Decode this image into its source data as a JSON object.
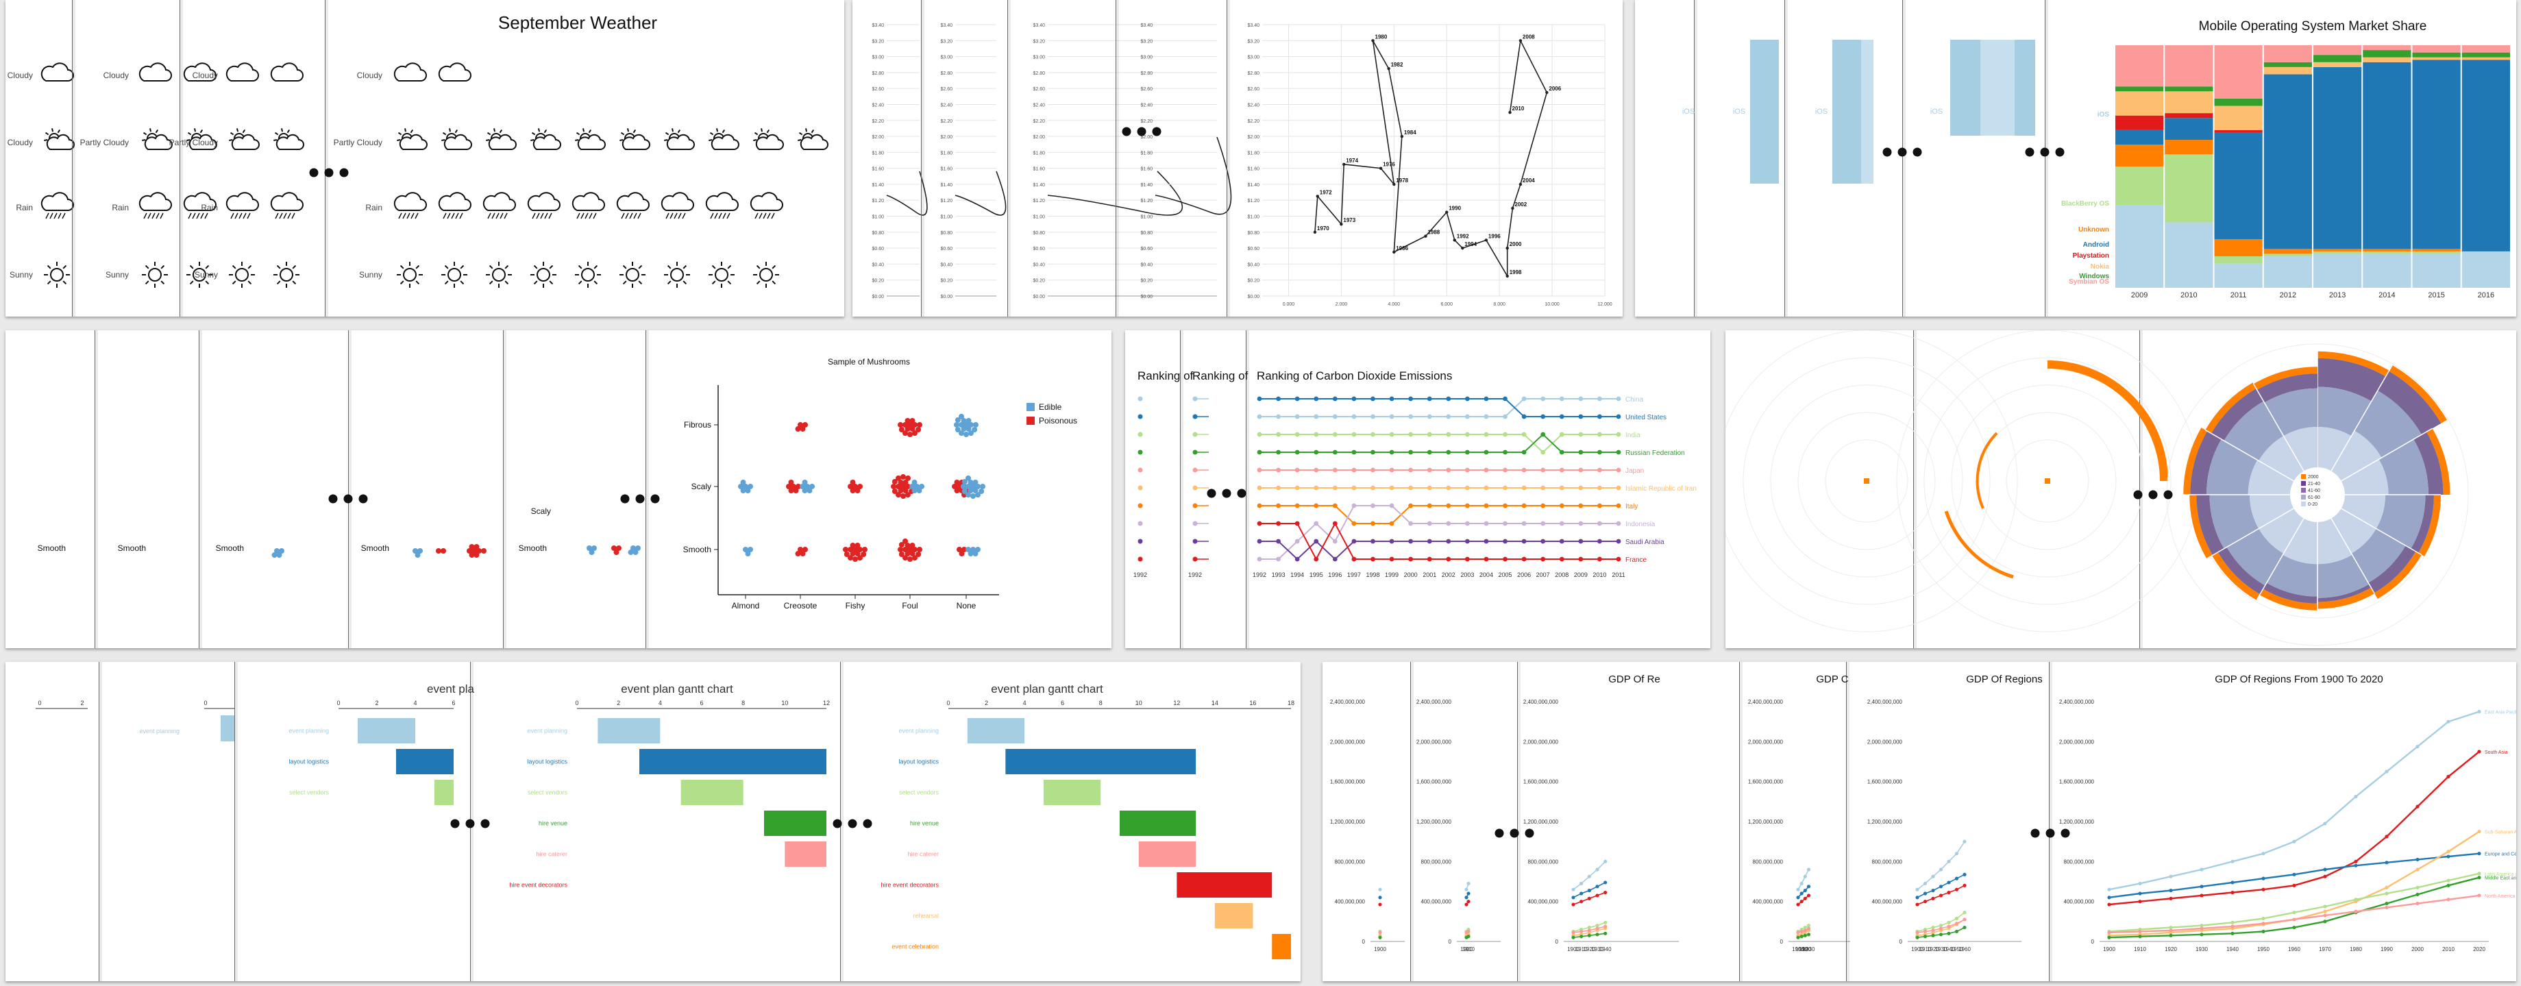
{
  "weather": {
    "title": "September Weather",
    "categories": [
      "Cloudy",
      "Partly Cloudy",
      "Rain",
      "Sunny"
    ],
    "frame_columns": [
      1,
      2,
      11
    ],
    "icons": [
      "cloud-icon",
      "partly-cloudy-icon",
      "rain-icon",
      "sun-icon"
    ],
    "chart_data": {
      "type": "table",
      "title": "September Weather",
      "rows": [
        "Cloudy",
        "Partly Cloudy",
        "Rain",
        "Sunny"
      ],
      "counts": [
        2,
        10,
        9,
        9
      ]
    }
  },
  "connected_scatter": {
    "ytick_labels": [
      "$0.00",
      "$0.20",
      "$0.40",
      "$0.60",
      "$0.80",
      "$1.00",
      "$1.20",
      "$1.40",
      "$1.60",
      "$1.80",
      "$2.00",
      "$2.20",
      "$2.40",
      "$2.60",
      "$2.80",
      "$3.00",
      "$3.20",
      "$3.40"
    ],
    "xtick_labels": [
      "0.000",
      "2.000",
      "4.000",
      "6.000",
      "8.000",
      "10.000",
      "12.000"
    ],
    "chart_data": {
      "type": "scatter",
      "connected": true,
      "ylim": [
        0,
        3.4
      ],
      "xlim": [
        -1,
        12
      ],
      "points": [
        {
          "label": "1970",
          "x": 1.0,
          "y": 0.8
        },
        {
          "label": "1972",
          "x": 1.1,
          "y": 1.25
        },
        {
          "label": "1973",
          "x": 2.0,
          "y": 0.9
        },
        {
          "label": "1974",
          "x": 2.1,
          "y": 1.65
        },
        {
          "label": "1976",
          "x": 3.5,
          "y": 1.6
        },
        {
          "label": "1978",
          "x": 4.0,
          "y": 1.4
        },
        {
          "label": "1980",
          "x": 3.2,
          "y": 3.2
        },
        {
          "label": "1982",
          "x": 3.8,
          "y": 2.85
        },
        {
          "label": "1984",
          "x": 4.3,
          "y": 2.0
        },
        {
          "label": "1986",
          "x": 4.0,
          "y": 0.55
        },
        {
          "label": "1988",
          "x": 5.2,
          "y": 0.75
        },
        {
          "label": "1990",
          "x": 6.0,
          "y": 1.05
        },
        {
          "label": "1992",
          "x": 6.3,
          "y": 0.7
        },
        {
          "label": "1994",
          "x": 6.6,
          "y": 0.6
        },
        {
          "label": "1996",
          "x": 7.5,
          "y": 0.7
        },
        {
          "label": "1998",
          "x": 8.3,
          "y": 0.25
        },
        {
          "label": "2000",
          "x": 8.3,
          "y": 0.6
        },
        {
          "label": "2002",
          "x": 8.5,
          "y": 1.1
        },
        {
          "label": "2004",
          "x": 8.8,
          "y": 1.4
        },
        {
          "label": "2006",
          "x": 9.8,
          "y": 2.55
        },
        {
          "label": "2008",
          "x": 8.8,
          "y": 3.2
        },
        {
          "label": "2010",
          "x": 8.4,
          "y": 2.3
        }
      ]
    }
  },
  "mobile_os": {
    "title": "Mobile Operating System Market Share",
    "frame_label": "iOS",
    "legend": [
      "iOS",
      "BlackBerry OS",
      "Unknown",
      "Android",
      "Playstation",
      "Nokia",
      "Windows",
      "Symbian OS"
    ],
    "colors": [
      "#a6cee3",
      "#b2df8a",
      "#ff7f00",
      "#1f78b4",
      "#e31a1c",
      "#fdbf6f",
      "#33a02c",
      "#fb9a99"
    ],
    "chart_data": {
      "type": "bar",
      "stacked": true,
      "percent": true,
      "categories": [
        "2009",
        "2010",
        "2011",
        "2012",
        "2013",
        "2014",
        "2015",
        "2016"
      ],
      "series": [
        {
          "name": "iOS",
          "values": [
            34,
            27,
            10,
            13,
            14,
            14,
            14,
            15
          ]
        },
        {
          "name": "BlackBerry OS",
          "values": [
            16,
            28,
            3,
            1,
            1,
            1,
            1,
            0
          ]
        },
        {
          "name": "Unknown",
          "values": [
            9,
            6,
            7,
            2,
            1,
            1,
            1,
            0
          ]
        },
        {
          "name": "Android",
          "values": [
            6,
            9,
            44,
            72,
            75,
            77,
            78,
            79
          ]
        },
        {
          "name": "Playstation",
          "values": [
            6,
            2,
            1,
            0,
            0,
            0,
            0,
            0
          ]
        },
        {
          "name": "Nokia",
          "values": [
            10,
            9,
            10,
            3,
            2,
            2,
            1,
            1
          ]
        },
        {
          "name": "Windows",
          "values": [
            2,
            2,
            3,
            2,
            3,
            3,
            2,
            2
          ]
        },
        {
          "name": "Symbian OS",
          "values": [
            17,
            17,
            22,
            7,
            4,
            2,
            3,
            3
          ]
        }
      ]
    }
  },
  "mushrooms": {
    "title": "Sample of Mushrooms",
    "legend": [
      {
        "name": "Edible",
        "color": "#5fa2d6"
      },
      {
        "name": "Poisonous",
        "color": "#e02424"
      }
    ],
    "frame_label_smooth": "Smooth",
    "frame_label_scaly": "Scaly",
    "chart_data": {
      "type": "scatter",
      "title": "Sample of Mushrooms",
      "categories": [
        "Almond",
        "Creosote",
        "Fishy",
        "Foul",
        "None"
      ],
      "rows": [
        "Fibrous",
        "Scaly",
        "Smooth"
      ],
      "edible": [
        [
          0,
          0,
          0,
          0,
          16
        ],
        [
          6,
          6,
          0,
          6,
          16
        ],
        [
          3,
          0,
          0,
          0,
          5
        ]
      ],
      "poisonous": [
        [
          0,
          4,
          0,
          14,
          0
        ],
        [
          0,
          6,
          6,
          18,
          10
        ],
        [
          0,
          4,
          14,
          16,
          3
        ]
      ]
    }
  },
  "co2": {
    "title": "Ranking of Carbon Dioxide Emissions",
    "frame_title_1": "Ranking of",
    "frame_title_2": "Ranking of",
    "years": [
      "1992",
      "1993",
      "1994",
      "1995",
      "1996",
      "1997",
      "1998",
      "1999",
      "2000",
      "2001",
      "2002",
      "2003",
      "2004",
      "2005",
      "2006",
      "2007",
      "2008",
      "2009",
      "2010",
      "2011"
    ],
    "countries": [
      "China",
      "United States",
      "India",
      "Russian Federation",
      "Japan",
      "Islamic Republic of Iran",
      "Italy",
      "Indonesia",
      "Saudi Arabia",
      "France"
    ],
    "colors": [
      "#a6cee3",
      "#1f78b4",
      "#b2df8a",
      "#33a02c",
      "#fb9a99",
      "#fdbf6f",
      "#ff7f00",
      "#cab2d6",
      "#6a3d9a",
      "#e31a1c"
    ],
    "chart_data": {
      "type": "line",
      "title": "Ranking of Carbon Dioxide Emissions",
      "note": "rank 1 = top row",
      "series": [
        {
          "name": "China",
          "values": [
            2,
            2,
            2,
            2,
            2,
            2,
            2,
            2,
            2,
            2,
            2,
            2,
            2,
            2,
            1,
            1,
            1,
            1,
            1,
            1
          ]
        },
        {
          "name": "United States",
          "values": [
            1,
            1,
            1,
            1,
            1,
            1,
            1,
            1,
            1,
            1,
            1,
            1,
            1,
            1,
            2,
            2,
            2,
            2,
            2,
            2
          ]
        },
        {
          "name": "India",
          "values": [
            3,
            3,
            3,
            3,
            3,
            3,
            3,
            3,
            3,
            3,
            3,
            3,
            3,
            3,
            3,
            4,
            3,
            3,
            3,
            3
          ]
        },
        {
          "name": "Russian Federation",
          "values": [
            4,
            4,
            4,
            4,
            4,
            4,
            4,
            4,
            4,
            4,
            4,
            4,
            4,
            4,
            4,
            3,
            4,
            4,
            4,
            4
          ]
        },
        {
          "name": "Japan",
          "values": [
            5,
            5,
            5,
            5,
            5,
            5,
            5,
            5,
            5,
            5,
            5,
            5,
            5,
            5,
            5,
            5,
            5,
            5,
            5,
            5
          ]
        },
        {
          "name": "Islamic Republic of Iran",
          "values": [
            6,
            6,
            6,
            6,
            6,
            6,
            6,
            6,
            6,
            6,
            6,
            6,
            6,
            6,
            6,
            6,
            6,
            6,
            6,
            6
          ]
        },
        {
          "name": "Italy",
          "values": [
            7,
            7,
            7,
            7,
            7,
            8,
            8,
            8,
            7,
            7,
            7,
            7,
            7,
            7,
            7,
            7,
            7,
            7,
            7,
            7
          ]
        },
        {
          "name": "Indonesia",
          "values": [
            10,
            10,
            9,
            8,
            9,
            7,
            7,
            7,
            8,
            8,
            8,
            8,
            8,
            8,
            8,
            8,
            8,
            8,
            8,
            8
          ]
        },
        {
          "name": "Saudi Arabia",
          "values": [
            9,
            9,
            10,
            9,
            10,
            9,
            9,
            9,
            9,
            9,
            9,
            9,
            9,
            9,
            9,
            9,
            9,
            9,
            9,
            9
          ]
        },
        {
          "name": "France",
          "values": [
            8,
            8,
            8,
            10,
            8,
            10,
            10,
            10,
            10,
            10,
            10,
            10,
            10,
            10,
            10,
            10,
            10,
            10,
            10,
            10
          ]
        }
      ]
    }
  },
  "radial": {
    "legend_labels": [
      "2000",
      "21-40",
      "41-60",
      "61-80",
      "0-20"
    ],
    "colors": [
      "#ff7f00",
      "#6a3d9a",
      "#8a6aa8",
      "#a9a9c8",
      "#c8d4e8"
    ],
    "chart_data": {
      "type": "bar",
      "polar": true,
      "segments": 12,
      "series": [
        {
          "name": "outer",
          "values": [
            0.93,
            0.97,
            0.86,
            0.8,
            0.78,
            0.74,
            0.75,
            0.79,
            0.83,
            0.87,
            0.84,
            0.83
          ]
        },
        {
          "name": "middle",
          "values": [
            0.7,
            0.78,
            0.72,
            0.7,
            0.66,
            0.67,
            0.66,
            0.68,
            0.7,
            0.72,
            0.7,
            0.69
          ]
        },
        {
          "name": "inner",
          "values": [
            0.44,
            0.48,
            0.46,
            0.44,
            0.44,
            0.45,
            0.45,
            0.44,
            0.44,
            0.45,
            0.44,
            0.44
          ]
        }
      ]
    }
  },
  "gantt": {
    "title": "event plan gantt chart",
    "frame_title_short": "event pla",
    "xtick_labels": [
      "0",
      "2",
      "4",
      "6",
      "8",
      "10",
      "12",
      "14",
      "16",
      "18"
    ],
    "chart_data": {
      "type": "bar",
      "orientation": "horizontal",
      "title": "event plan gantt chart",
      "xlim": [
        0,
        18
      ],
      "tasks": [
        {
          "name": "event planning",
          "start": 1,
          "end": 4,
          "color": "#a6cee3"
        },
        {
          "name": "layout logistics",
          "start": 3,
          "end": 13,
          "color": "#1f78b4"
        },
        {
          "name": "select vendors",
          "start": 5,
          "end": 8,
          "color": "#b2df8a"
        },
        {
          "name": "hire venue",
          "start": 9,
          "end": 13,
          "color": "#33a02c"
        },
        {
          "name": "hire caterer",
          "start": 10,
          "end": 13,
          "color": "#fb9a99"
        },
        {
          "name": "hire event decorators",
          "start": 12,
          "end": 17,
          "color": "#e31a1c"
        },
        {
          "name": "rehearsal",
          "start": 14,
          "end": 16,
          "color": "#fdbf6f"
        },
        {
          "name": "event celebration",
          "start": 17,
          "end": 18,
          "color": "#ff7f00"
        }
      ]
    }
  },
  "gdp": {
    "title": "GDP Of Regions From 1900 To 2020",
    "frame_title_1": "GDP Of Re",
    "frame_title_2": "GDP C",
    "frame_title_3": "GDP Of Regions",
    "ytick_labels": [
      "0",
      "400,000,000",
      "800,000,000",
      "1,200,000,000",
      "1,600,000,000",
      "2,000,000,000",
      "2,400,000,000"
    ],
    "xtick_labels": [
      "1900",
      "1910",
      "1920",
      "1930",
      "1940",
      "1950",
      "1960",
      "1970",
      "1980",
      "1990",
      "2000",
      "2010",
      "2020"
    ],
    "chart_data": {
      "type": "line",
      "title": "GDP Of Regions From 1900 To 2020",
      "ylim": [
        0,
        2400000000
      ],
      "x": [
        1900,
        1910,
        1920,
        1930,
        1940,
        1950,
        1960,
        1970,
        1980,
        1990,
        2000,
        2010,
        2020
      ],
      "series": [
        {
          "name": "East Asia Pacific",
          "color": "#a6cee3",
          "values": [
            520,
            580,
            650,
            720,
            800,
            880,
            1000,
            1180,
            1450,
            1700,
            1950,
            2200,
            2300
          ]
        },
        {
          "name": "South Asia",
          "color": "#e31a1c",
          "values": [
            370,
            400,
            430,
            460,
            490,
            520,
            560,
            650,
            800,
            1050,
            1350,
            1650,
            1900
          ]
        },
        {
          "name": "Europe and Central Asia",
          "color": "#1f78b4",
          "values": [
            440,
            480,
            510,
            550,
            590,
            630,
            670,
            720,
            760,
            790,
            820,
            850,
            880
          ]
        },
        {
          "name": "Sub-Saharan Africa",
          "color": "#fdbf6f",
          "values": [
            60,
            70,
            90,
            110,
            130,
            170,
            220,
            300,
            400,
            540,
            720,
            900,
            1100
          ]
        },
        {
          "name": "Latin America and Caribbean",
          "color": "#b2df8a",
          "values": [
            100,
            120,
            140,
            160,
            190,
            230,
            290,
            350,
            420,
            480,
            540,
            610,
            680
          ]
        },
        {
          "name": "Middle East and North Africa",
          "color": "#33a02c",
          "values": [
            40,
            50,
            60,
            70,
            80,
            100,
            140,
            200,
            290,
            380,
            470,
            560,
            640
          ]
        },
        {
          "name": "North America",
          "color": "#fb9a99",
          "values": [
            90,
            100,
            110,
            130,
            150,
            180,
            220,
            260,
            300,
            340,
            380,
            420,
            460
          ]
        }
      ]
    }
  }
}
